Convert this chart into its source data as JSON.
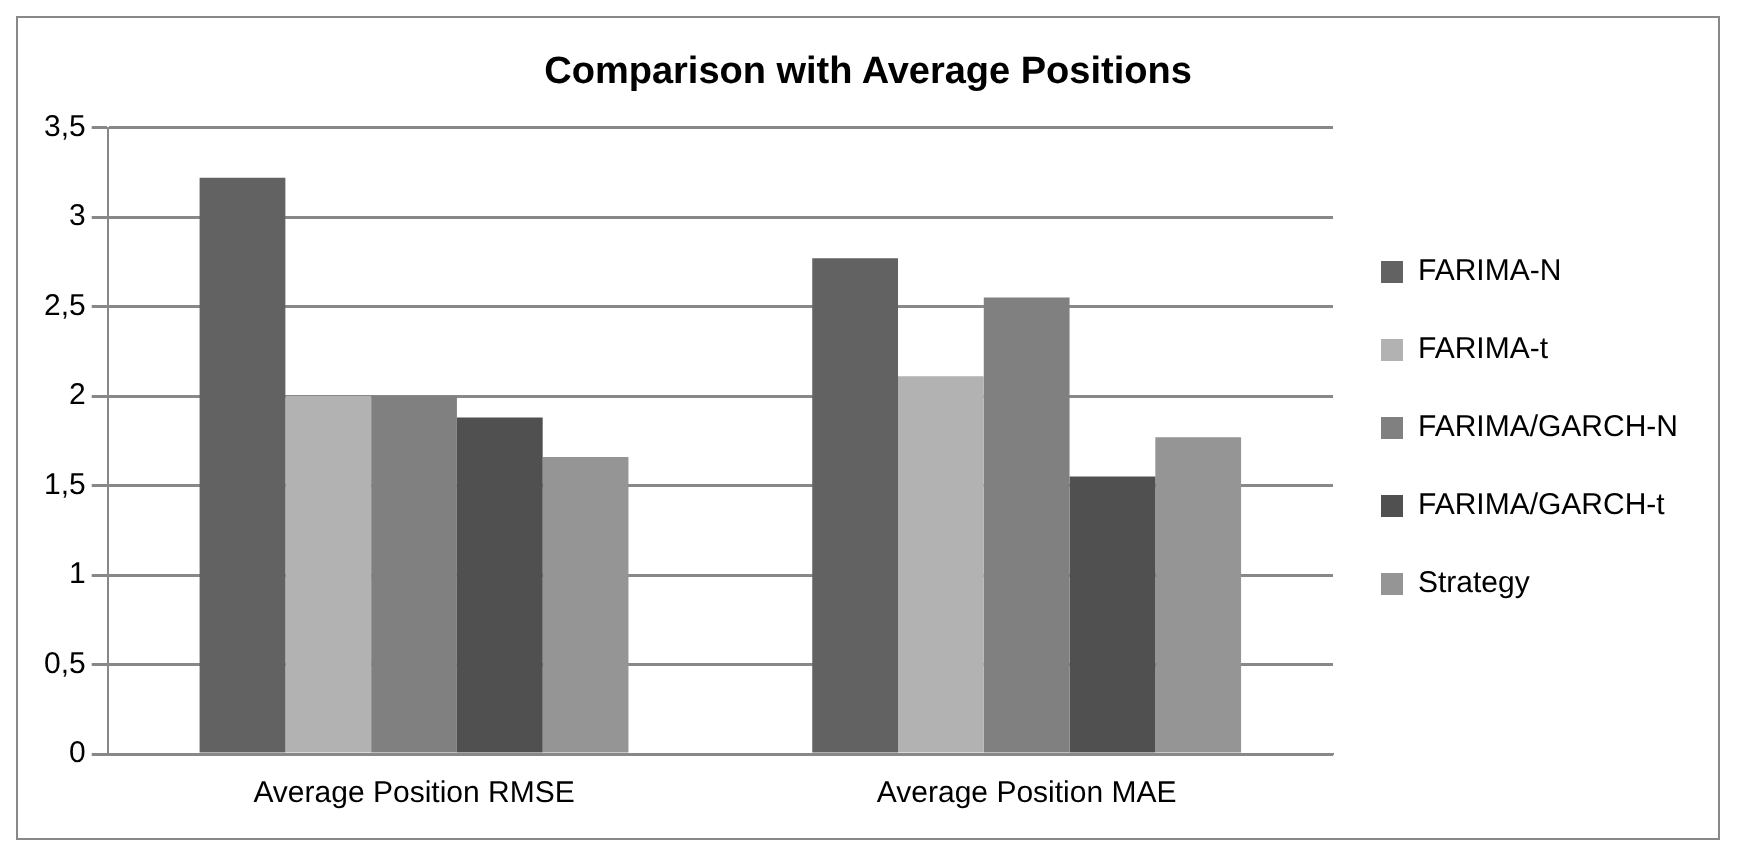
{
  "chart_data": {
    "type": "bar",
    "title": "Comparison with Average Positions",
    "categories": [
      "Average Position RMSE",
      "Average Position MAE"
    ],
    "series": [
      {
        "name": "FARIMA-N",
        "color": "#626262",
        "values": [
          3.22,
          2.77
        ]
      },
      {
        "name": "FARIMA-t",
        "color": "#b2b2b2",
        "values": [
          2.0,
          2.11
        ]
      },
      {
        "name": "FARIMA/GARCH-N",
        "color": "#808080",
        "values": [
          2.0,
          2.55
        ]
      },
      {
        "name": "FARIMA/GARCH-t",
        "color": "#505050",
        "values": [
          1.88,
          1.55
        ]
      },
      {
        "name": "Strategy",
        "color": "#959595",
        "values": [
          1.66,
          1.77
        ]
      }
    ],
    "ylim": [
      0,
      3.5
    ],
    "yticks": [
      0,
      {
        "value": 0.5,
        "label": "0,5"
      },
      1,
      {
        "value": 1.5,
        "label": "1,5"
      },
      2,
      {
        "value": 2.5,
        "label": "2,5"
      },
      3,
      {
        "value": 3.5,
        "label": "3,5"
      }
    ],
    "grid": "y",
    "legend": "right"
  }
}
